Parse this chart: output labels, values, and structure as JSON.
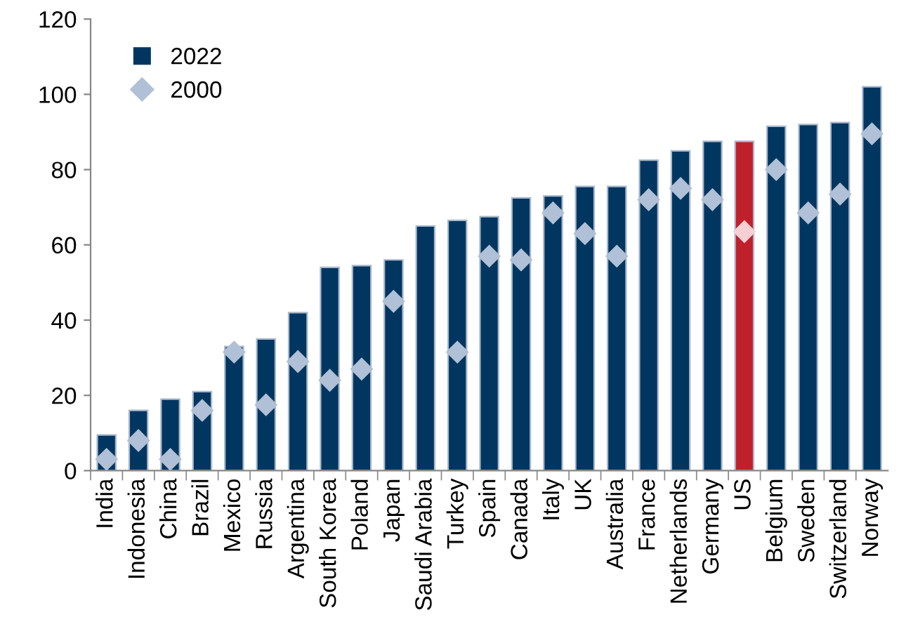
{
  "chart_data": {
    "type": "bar",
    "categories": [
      "India",
      "Indonesia",
      "China",
      "Brazil",
      "Mexico",
      "Russia",
      "Argentina",
      "South Korea",
      "Poland",
      "Japan",
      "Saudi Arabia",
      "Turkey",
      "Spain",
      "Canada",
      "Italy",
      "UK",
      "Australia",
      "France",
      "Netherlands",
      "Germany",
      "US",
      "Belgium",
      "Sweden",
      "Switzerland",
      "Norway"
    ],
    "series": [
      {
        "name": "2022",
        "color": "#003660",
        "colors": [
          "#003660",
          "#003660",
          "#003660",
          "#003660",
          "#003660",
          "#003660",
          "#003660",
          "#003660",
          "#003660",
          "#003660",
          "#003660",
          "#003660",
          "#003660",
          "#003660",
          "#003660",
          "#003660",
          "#003660",
          "#003660",
          "#003660",
          "#003660",
          "#c0202a",
          "#003660",
          "#003660",
          "#003660",
          "#003660"
        ],
        "values": [
          9.5,
          16,
          19,
          21,
          33,
          35,
          42,
          54,
          54.5,
          56,
          65,
          66.5,
          67.5,
          72.5,
          73,
          75.5,
          75.5,
          82.5,
          85,
          87.5,
          87.5,
          91.5,
          92,
          92.5,
          102
        ]
      },
      {
        "name": "2000",
        "type": "scatter",
        "color": "#b0c0d6",
        "colors": [
          "#b0c0d6",
          "#b0c0d6",
          "#b0c0d6",
          "#b0c0d6",
          "#b0c0d6",
          "#b0c0d6",
          "#b0c0d6",
          "#b0c0d6",
          "#b0c0d6",
          "#b0c0d6",
          "#b0c0d6",
          "#b0c0d6",
          "#b0c0d6",
          "#b0c0d6",
          "#b0c0d6",
          "#b0c0d6",
          "#b0c0d6",
          "#b0c0d6",
          "#b0c0d6",
          "#b0c0d6",
          "#f4d0d4",
          "#b0c0d6",
          "#b0c0d6",
          "#b0c0d6",
          "#b0c0d6"
        ],
        "marker": "diamond",
        "values": [
          3,
          8,
          3,
          16,
          31.5,
          17.5,
          29,
          24,
          27,
          45,
          null,
          31.5,
          57,
          56,
          68.5,
          63,
          57,
          72,
          75,
          72,
          63.5,
          80,
          68.5,
          73.5,
          89.5
        ]
      }
    ],
    "ylim": [
      0,
      120
    ],
    "yticks": [
      0,
      20,
      40,
      60,
      80,
      100,
      120
    ],
    "grid": false,
    "legend": "top left"
  }
}
